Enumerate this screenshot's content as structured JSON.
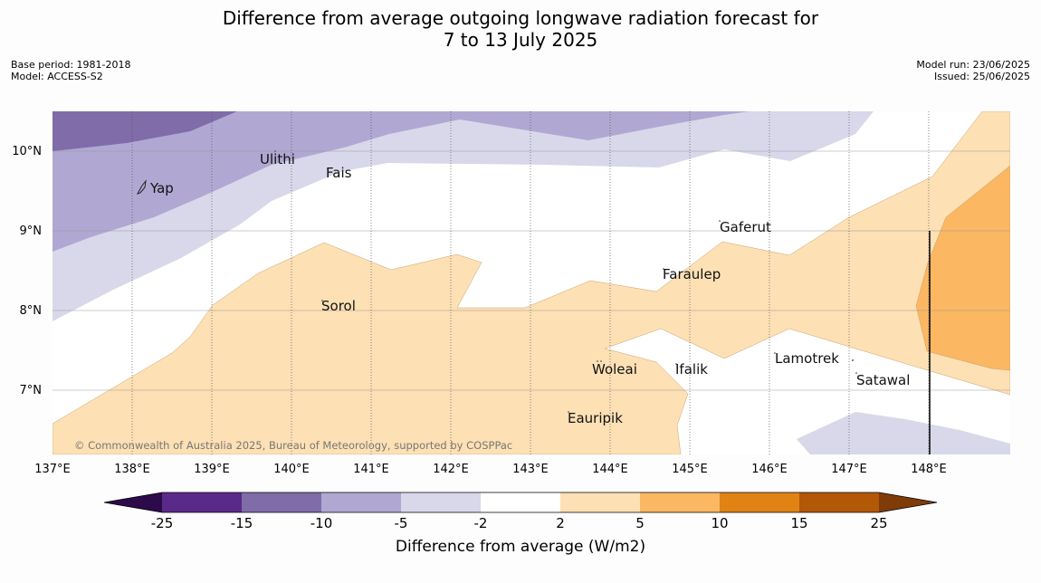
{
  "header": {
    "title_line1": "Difference from average outgoing longwave radiation forecast for",
    "title_line2": "7 to 13 July 2025",
    "base_period": "Base period: 1981-2018",
    "model": "Model: ACCESS-S2",
    "model_run": "Model run: 23/06/2025",
    "issued": "Issued: 25/06/2025"
  },
  "map": {
    "lon_labels": [
      "137°E",
      "138°E",
      "139°E",
      "140°E",
      "141°E",
      "142°E",
      "143°E",
      "144°E",
      "145°E",
      "146°E",
      "147°E",
      "148°E"
    ],
    "lat_labels": [
      "10°N",
      "9°N",
      "8°N",
      "7°N"
    ],
    "places": [
      "Ulithi",
      "Fais",
      "Yap",
      "Gaferut",
      "Faraulep",
      "Sorol",
      "Woleai",
      "Ifalik",
      "Lamotrek",
      "Satawal",
      "Eauripik"
    ],
    "copyright": "© Commonwealth of Australia 2025, Bureau of Meteorology, supported by COSPPac"
  },
  "legend": {
    "ticks": [
      "-25",
      "-15",
      "-10",
      "-5",
      "-2",
      "2",
      "5",
      "10",
      "15",
      "25"
    ],
    "label": "Difference from average (W/m2)",
    "colors": {
      "extend_low": "#2d0a4a",
      "c1": "#5a2a8a",
      "c2": "#7f6ca8",
      "c3": "#b0a8d2",
      "c4": "#d8d8ea",
      "c5": "#ffffff",
      "c6": "#fde0b4",
      "c7": "#fbb762",
      "c8": "#e08314",
      "c9": "#b35806",
      "extend_high": "#7f3b08"
    }
  }
}
